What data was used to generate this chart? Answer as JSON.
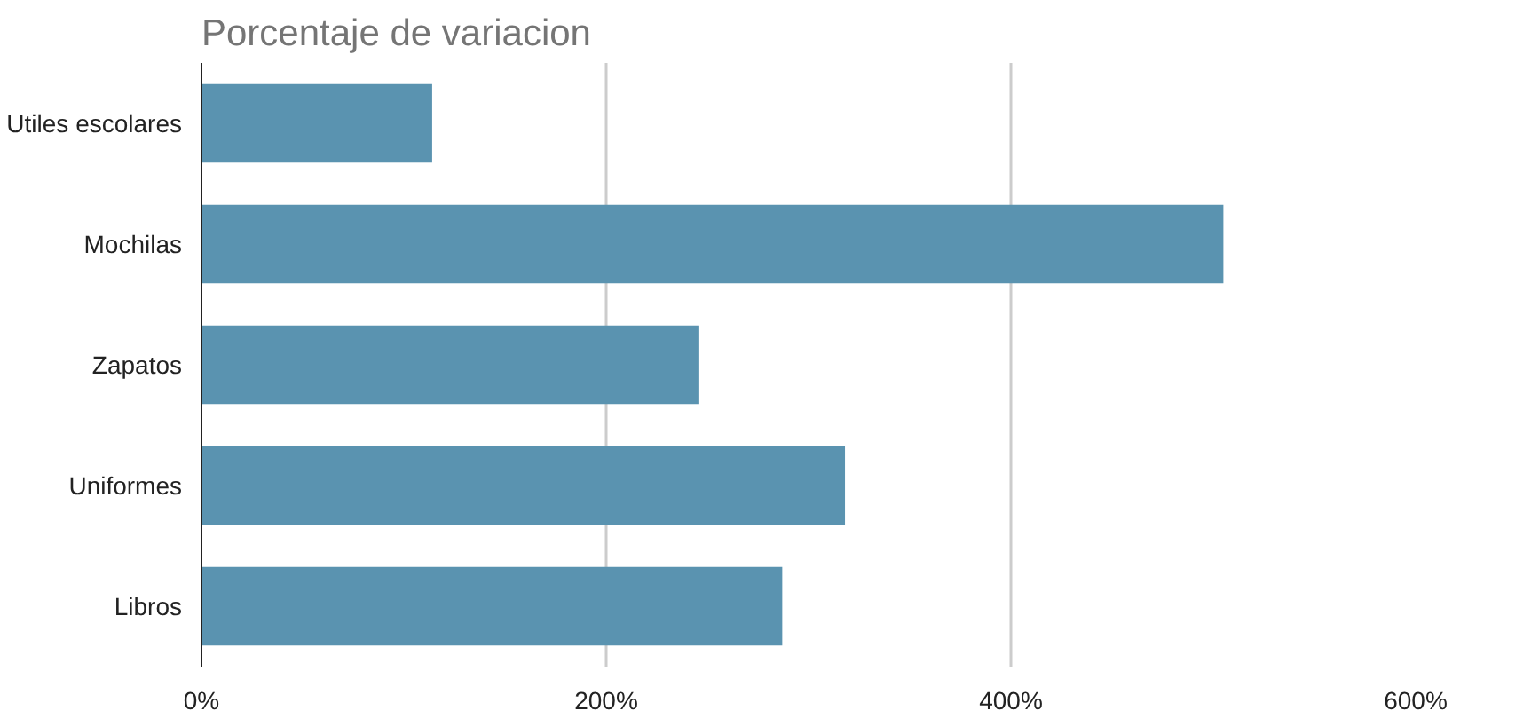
{
  "chart_data": {
    "type": "bar",
    "orientation": "horizontal",
    "title": "Porcentaje de variacion",
    "categories": [
      "Utiles escolares",
      "Mochilas",
      "Zapatos",
      "Uniformes",
      "Libros"
    ],
    "values": [
      114,
      505,
      246,
      318,
      287
    ],
    "color": "#5a93b0",
    "xlim": [
      0,
      600
    ],
    "xticks": [
      {
        "value": 0,
        "label": "0%"
      },
      {
        "value": 200,
        "label": "200%"
      },
      {
        "value": 400,
        "label": "400%"
      },
      {
        "value": 600,
        "label": "600%"
      }
    ],
    "grid": "x"
  }
}
